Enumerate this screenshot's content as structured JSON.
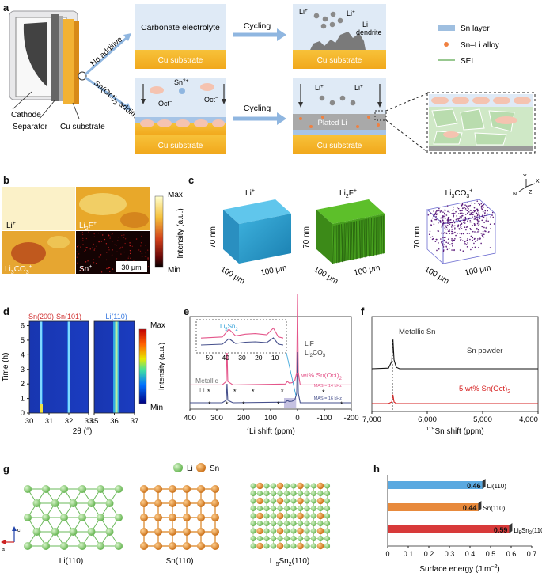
{
  "panel_labels": [
    "a",
    "b",
    "c",
    "d",
    "e",
    "f",
    "g",
    "h"
  ],
  "panel_a": {
    "no_additive": "No additive",
    "additive_pre": "Sn(Oct)",
    "additive_sub": "2",
    "additive_post": " additive",
    "cathode": "Cathode",
    "separator": "Separator",
    "cu_substrate_left": "Cu substrate",
    "carbonate_electrolyte": "Carbonate electrolyte",
    "cu_substrate": "Cu substrate",
    "cycling": "Cycling",
    "li_ion": "Li",
    "plus": "+",
    "li_dendrite": "Li",
    "dendrite": "dendrite",
    "sn_ion": "Sn",
    "sn_charge": "2+",
    "oct_ion": "Oct",
    "minus": "−",
    "plated_li": "Plated Li",
    "legend": [
      "Sn layer",
      "Sn–Li alloy",
      "SEI"
    ],
    "legend_colors": [
      "#9fbfe0",
      "#f08040",
      "#98c890"
    ]
  },
  "panel_b": {
    "tiles": [
      "Li",
      "Li",
      "Li",
      "Sn"
    ],
    "tile_sups": [
      "+",
      "+",
      "+",
      "+"
    ],
    "tile_subs": [
      "",
      "2",
      "3",
      ""
    ],
    "tile_tails": [
      "",
      "F",
      "CO",
      ""
    ],
    "tile_sub2": [
      "",
      "",
      "3",
      ""
    ],
    "scale": "30 μm",
    "cbar_max": "Max",
    "cbar_min": "Min",
    "cbar_label": "Intensity (a.u.)"
  },
  "panel_c": {
    "titles": [
      "Li",
      "Li",
      "Li"
    ],
    "title_subs": [
      "",
      "2",
      "3"
    ],
    "title_mid": [
      "",
      "F",
      "CO"
    ],
    "title_sub2": [
      "",
      "",
      "3"
    ],
    "title_sups": [
      "+",
      "+",
      "+"
    ],
    "depth": "70 nm",
    "side": "100 μm",
    "axes": [
      "Y",
      "N",
      "Z",
      "X"
    ]
  },
  "chart_data": [
    {
      "type": "heatmap",
      "panel": "d",
      "xlabel": "2θ (°)",
      "ylabel": "Time (h)",
      "left": {
        "xlim": [
          30,
          33
        ],
        "ticks": [
          30,
          31,
          32,
          33
        ],
        "peaks": [
          {
            "name": "Sn(200)",
            "x": 30.6
          },
          {
            "name": "Sn(101)",
            "x": 32.0
          }
        ]
      },
      "right": {
        "xlim": [
          35,
          37
        ],
        "ticks": [
          35,
          36,
          37
        ],
        "peaks": [
          {
            "name": "Li(110)",
            "x": 36.1
          }
        ]
      },
      "ylim": [
        0,
        6.3
      ],
      "yticks": [
        0,
        1,
        2,
        3,
        4,
        5,
        6
      ],
      "cbar_max": "Max",
      "cbar_min": "Min",
      "cbar_label": "Intensity (a.u.)"
    },
    {
      "type": "line",
      "panel": "e",
      "xlabel_pre": "7",
      "xlabel": "Li shift (ppm)",
      "xlim": [
        400,
        -200
      ],
      "xticks": [
        400,
        300,
        200,
        100,
        0,
        -100,
        -200
      ],
      "inset_xticks": [
        50,
        40,
        30,
        20,
        10
      ],
      "inset_label": "Li",
      "inset_label_sub1": "5",
      "inset_label_mid": "Sn",
      "inset_label_sub2": "2",
      "peak_labels": {
        "lif": "LiF",
        "li2co3_a": "Li",
        "li2co3_sub": "2",
        "li2co3_b": "CO",
        "li2co3_sub2": "3",
        "metallic": "Metallic",
        "li": "Li"
      },
      "series": [
        {
          "name": "5 wt% Sn(Oct)",
          "sub": "2",
          "color": "#e4558a",
          "x": [
            400,
            280,
            265,
            262,
            259,
            240,
            45,
            38,
            30,
            20,
            10,
            3,
            0,
            -3,
            -10,
            -200
          ],
          "y": [
            0.12,
            0.12,
            0.2,
            1.0,
            0.2,
            0.12,
            0.14,
            0.2,
            0.16,
            0.17,
            0.22,
            0.4,
            2.2,
            0.4,
            0.12,
            0.12
          ],
          "note": "MAS = 14 kHz"
        },
        {
          "name": "",
          "color": "#46508c",
          "x": [
            400,
            280,
            265,
            262,
            259,
            240,
            45,
            38,
            30,
            20,
            10,
            3,
            0,
            -3,
            -10,
            -200
          ],
          "y": [
            0.0,
            0.0,
            0.08,
            0.6,
            0.08,
            0.0,
            0.02,
            0.07,
            0.04,
            0.05,
            0.09,
            0.3,
            1.6,
            0.3,
            0.0,
            0.0
          ],
          "note": "MAS = 16 kHz"
        }
      ]
    },
    {
      "type": "line",
      "panel": "f",
      "xlabel_pre": "119",
      "xlabel": "Sn shift (ppm)",
      "xlim": [
        7000,
        4000
      ],
      "xticks": [
        7000,
        6000,
        5000,
        4000
      ],
      "tick_labels": [
        "7,000",
        "6,000",
        "5,000",
        "4,000"
      ],
      "peak_label": "Metallic Sn",
      "series": [
        {
          "name": "Sn powder",
          "color": "#111111",
          "x": [
            7000,
            6700,
            6640,
            6620,
            6600,
            6560,
            6500,
            4000
          ],
          "y": [
            0.0,
            0.02,
            0.25,
            1.0,
            0.3,
            0.05,
            0.0,
            0.0
          ]
        },
        {
          "name": "5 wt% Sn(Oct)",
          "sub": "2",
          "color": "#d62020",
          "x": [
            7000,
            6700,
            6640,
            6620,
            6600,
            6560,
            6500,
            4000
          ],
          "y": [
            0.0,
            0.0,
            0.05,
            0.28,
            0.05,
            0.0,
            0.0,
            0.0
          ]
        }
      ]
    },
    {
      "type": "bar",
      "panel": "h",
      "orientation": "horizontal",
      "categories": [
        "Li(110)",
        "Sn(110)",
        "Li5Sn2(110)"
      ],
      "values": [
        0.46,
        0.44,
        0.59
      ],
      "value_labels": [
        "0.46",
        "0.44",
        "0.59"
      ],
      "colors": [
        "#5aa9e0",
        "#e88a3c",
        "#d83a3a"
      ],
      "xlabel_pre": "Surface energy (J m",
      "xlabel_sup": "−2",
      "xlabel_post": ")",
      "xlim": [
        0,
        0.7
      ],
      "xticks": [
        "0",
        "0.1",
        "0.2",
        "0.3",
        "0.4",
        "0.5",
        "0.6",
        "0.7"
      ]
    }
  ],
  "panel_g": {
    "legend": [
      "Li",
      "Sn"
    ],
    "structures": [
      "Li(110)",
      "Sn(110)",
      "Li5Sn2(110)"
    ],
    "axis_c": "c",
    "axis_a": "a",
    "li_color": "#7cc86a",
    "sn_color": "#d9801e"
  }
}
